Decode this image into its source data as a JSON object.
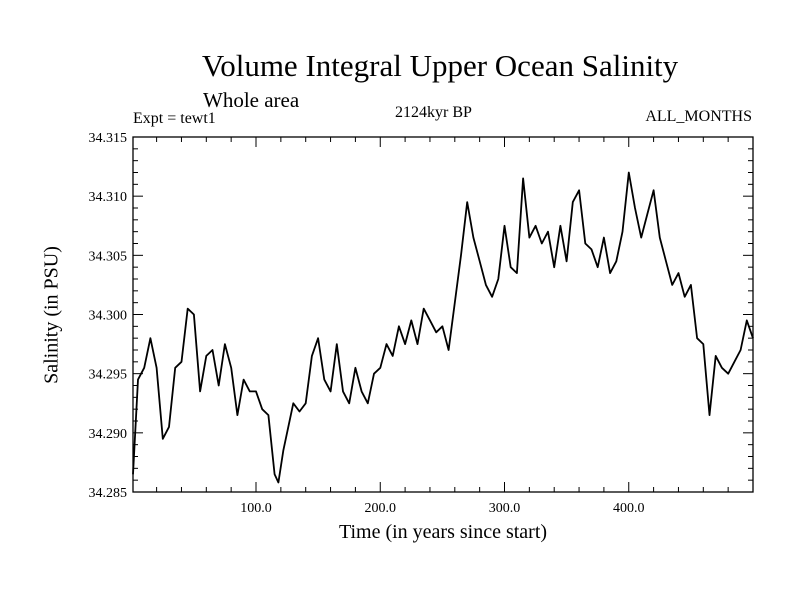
{
  "chart_data": {
    "type": "line",
    "title": "Volume Integral Upper Ocean Salinity",
    "subtitle": "Whole area",
    "annotations": {
      "experiment": "Expt = tewt1",
      "period": "2124kyr BP",
      "months": "ALL_MONTHS"
    },
    "xlabel": "Time (in years since start)",
    "ylabel": "Salinity (in PSU)",
    "xlim": [
      1,
      500
    ],
    "ylim": [
      34.285,
      34.315
    ],
    "x_ticks": [
      100,
      200,
      300,
      400
    ],
    "x_tick_labels": [
      "100.0",
      "200.0",
      "300.0",
      "400.0"
    ],
    "y_ticks": [
      34.285,
      34.29,
      34.295,
      34.3,
      34.305,
      34.31,
      34.315
    ],
    "y_tick_labels": [
      "34.285",
      "34.290",
      "34.295",
      "34.300",
      "34.305",
      "34.310",
      "34.315"
    ],
    "grid": false,
    "series": [
      {
        "name": "salinity",
        "x": [
          1,
          5,
          10,
          15,
          20,
          25,
          30,
          35,
          40,
          45,
          50,
          55,
          60,
          65,
          70,
          75,
          80,
          85,
          90,
          95,
          100,
          105,
          110,
          115,
          118,
          122,
          126,
          130,
          135,
          140,
          145,
          150,
          155,
          160,
          165,
          170,
          175,
          180,
          185,
          190,
          195,
          200,
          205,
          210,
          215,
          220,
          225,
          230,
          235,
          240,
          245,
          250,
          255,
          260,
          265,
          270,
          275,
          280,
          285,
          290,
          295,
          300,
          305,
          310,
          315,
          320,
          325,
          330,
          335,
          340,
          345,
          350,
          355,
          360,
          365,
          370,
          375,
          380,
          385,
          390,
          395,
          400,
          405,
          410,
          415,
          420,
          425,
          430,
          435,
          440,
          445,
          450,
          455,
          460,
          465,
          470,
          475,
          480,
          485,
          490,
          495,
          500
        ],
        "values": [
          34.2865,
          34.2945,
          34.2955,
          34.298,
          34.2955,
          34.2895,
          34.2905,
          34.2955,
          34.296,
          34.3005,
          34.3,
          34.2935,
          34.2965,
          34.297,
          34.294,
          34.2975,
          34.2955,
          34.2915,
          34.2945,
          34.2935,
          34.2935,
          34.292,
          34.2915,
          34.2865,
          34.2858,
          34.2885,
          34.2905,
          34.2925,
          34.2918,
          34.2925,
          34.2965,
          34.298,
          34.2945,
          34.2935,
          34.2975,
          34.2935,
          34.2925,
          34.2955,
          34.2935,
          34.2925,
          34.295,
          34.2955,
          34.2975,
          34.2965,
          34.299,
          34.2975,
          34.2995,
          34.2975,
          34.3005,
          34.2995,
          34.2985,
          34.299,
          34.297,
          34.301,
          34.305,
          34.3095,
          34.3065,
          34.3045,
          34.3025,
          34.3015,
          34.303,
          34.3075,
          34.304,
          34.3035,
          34.3115,
          34.3065,
          34.3075,
          34.306,
          34.307,
          34.304,
          34.3075,
          34.3045,
          34.3095,
          34.3105,
          34.306,
          34.3055,
          34.304,
          34.3065,
          34.3035,
          34.3045,
          34.307,
          34.312,
          34.309,
          34.3065,
          34.3085,
          34.3105,
          34.3065,
          34.3045,
          34.3025,
          34.3035,
          34.3015,
          34.3025,
          34.298,
          34.2975,
          34.2915,
          34.2965,
          34.2955,
          34.295,
          34.296,
          34.297,
          34.2995,
          34.298
        ]
      }
    ]
  }
}
